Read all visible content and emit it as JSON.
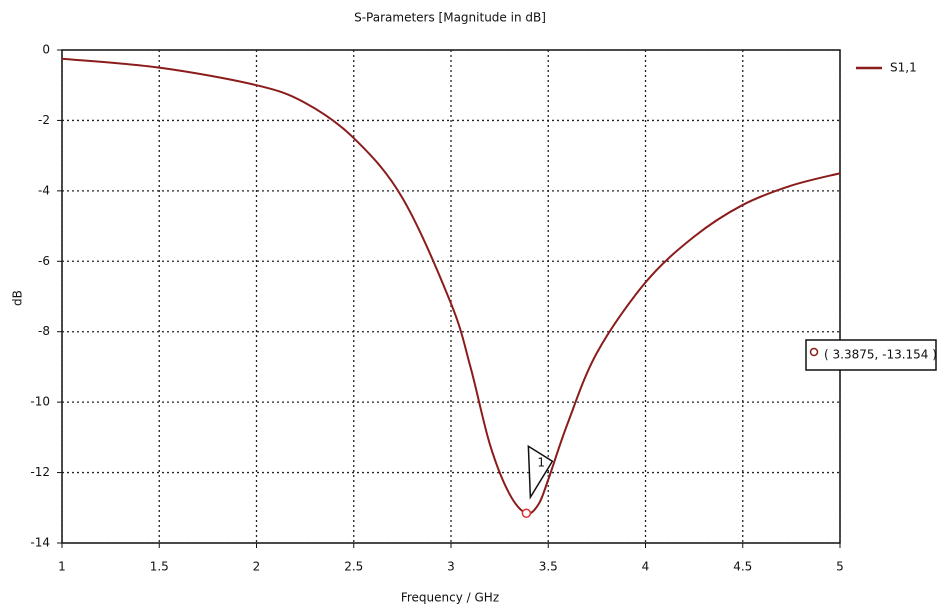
{
  "chart_data": {
    "type": "line",
    "title": "S-Parameters [Magnitude in dB]",
    "x_label": "Frequency / GHz",
    "y_label": "dB",
    "xlim": [
      1,
      5
    ],
    "ylim": [
      -14,
      0
    ],
    "xticks": [
      1,
      1.5,
      2,
      2.5,
      3,
      3.5,
      4,
      4.5,
      5
    ],
    "yticks": [
      0,
      -2,
      -4,
      -6,
      -8,
      -10,
      -12,
      -14
    ],
    "grid": true,
    "legend": "top-right",
    "series": [
      {
        "name": "S1,1",
        "color": "#8b1c1c",
        "x": [
          1,
          1.5,
          2,
          2.25,
          2.5,
          2.75,
          3,
          3.1,
          3.2,
          3.3,
          3.3875,
          3.45,
          3.5,
          3.6,
          3.75,
          4,
          4.25,
          4.5,
          4.75,
          5
        ],
        "values": [
          -0.25,
          -0.5,
          -1.0,
          -1.5,
          -2.5,
          -4.2,
          -7.2,
          -9.0,
          -11.2,
          -12.6,
          -13.154,
          -12.9,
          -12.2,
          -10.6,
          -8.6,
          -6.6,
          -5.3,
          -4.4,
          -3.85,
          -3.5
        ]
      }
    ],
    "marker": {
      "label": "1",
      "x": 3.3875,
      "y": -13.154,
      "text": "( 3.3875, -13.154 )"
    }
  }
}
